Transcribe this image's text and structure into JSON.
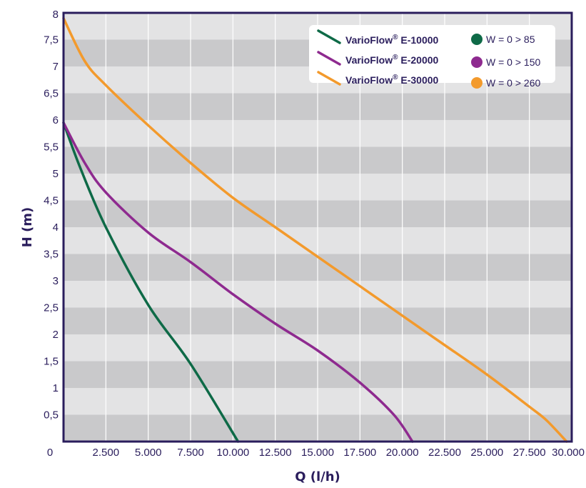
{
  "chart_data": {
    "type": "line",
    "xlabel": "Q (l/h)",
    "ylabel": "H (m)",
    "xlim": [
      0,
      30000
    ],
    "ylim": [
      0,
      8
    ],
    "x_ticks": [
      {
        "value": 2500,
        "label": "2.500"
      },
      {
        "value": 5000,
        "label": "5.000"
      },
      {
        "value": 7500,
        "label": "7.500"
      },
      {
        "value": 10000,
        "label": "10.000"
      },
      {
        "value": 12500,
        "label": "12.500"
      },
      {
        "value": 15000,
        "label": "15.000"
      },
      {
        "value": 17500,
        "label": "17.500"
      },
      {
        "value": 20000,
        "label": "20.000"
      },
      {
        "value": 22500,
        "label": "22.500"
      },
      {
        "value": 25000,
        "label": "25.000"
      },
      {
        "value": 27500,
        "label": "27.500"
      },
      {
        "value": 30000,
        "label": "30.000"
      }
    ],
    "origin_label": "0",
    "y_ticks": [
      {
        "value": 0.5,
        "label": "0,5"
      },
      {
        "value": 1,
        "label": "1"
      },
      {
        "value": 1.5,
        "label": "1,5"
      },
      {
        "value": 2,
        "label": "2"
      },
      {
        "value": 2.5,
        "label": "2,5"
      },
      {
        "value": 3,
        "label": "3"
      },
      {
        "value": 3.5,
        "label": "3,5"
      },
      {
        "value": 4,
        "label": "4"
      },
      {
        "value": 4.5,
        "label": "4,5"
      },
      {
        "value": 5,
        "label": "5"
      },
      {
        "value": 5.5,
        "label": "5,5"
      },
      {
        "value": 6,
        "label": "6"
      },
      {
        "value": 6.5,
        "label": "6,5"
      },
      {
        "value": 7,
        "label": "7"
      },
      {
        "value": 7.5,
        "label": "7,5"
      },
      {
        "value": 8,
        "label": "8"
      }
    ],
    "grid": true,
    "legend_position": "top-right",
    "series": [
      {
        "name": "VarioFlow® E-10000",
        "name_base": "VarioFlow",
        "name_sup": "®",
        "name_model": " E-10000",
        "power_label": "W = 0 > 85",
        "color": "#0e6a47",
        "points": [
          [
            0,
            5.95
          ],
          [
            1000,
            5.1
          ],
          [
            2500,
            4.0
          ],
          [
            5000,
            2.55
          ],
          [
            7500,
            1.45
          ],
          [
            10300,
            0.0
          ]
        ]
      },
      {
        "name": "VarioFlow® E-20000",
        "name_base": "VarioFlow",
        "name_sup": "®",
        "name_model": " E-20000",
        "power_label": "W = 0 > 150",
        "color": "#8e2a8f",
        "points": [
          [
            0,
            5.95
          ],
          [
            1250,
            5.2
          ],
          [
            2500,
            4.65
          ],
          [
            5000,
            3.9
          ],
          [
            7500,
            3.35
          ],
          [
            10000,
            2.75
          ],
          [
            12500,
            2.2
          ],
          [
            15000,
            1.7
          ],
          [
            17500,
            1.1
          ],
          [
            19500,
            0.5
          ],
          [
            20600,
            0.0
          ]
        ]
      },
      {
        "name": "VarioFlow® E-30000",
        "name_base": "VarioFlow",
        "name_sup": "®",
        "name_model": " E-30000",
        "power_label": "W = 0 > 260",
        "color": "#f39a2c",
        "points": [
          [
            0,
            7.9
          ],
          [
            1250,
            7.1
          ],
          [
            2500,
            6.65
          ],
          [
            5000,
            5.9
          ],
          [
            7500,
            5.2
          ],
          [
            10000,
            4.55
          ],
          [
            12500,
            4.0
          ],
          [
            15000,
            3.45
          ],
          [
            17500,
            2.9
          ],
          [
            20000,
            2.35
          ],
          [
            22500,
            1.8
          ],
          [
            25000,
            1.25
          ],
          [
            27500,
            0.65
          ],
          [
            28500,
            0.4
          ],
          [
            29700,
            0.0
          ]
        ]
      }
    ]
  },
  "colors": {
    "frame": "#2a1d5c",
    "band_dark": "#c9c9cb",
    "band_light": "#e3e3e4",
    "grid": "#ffffff"
  }
}
